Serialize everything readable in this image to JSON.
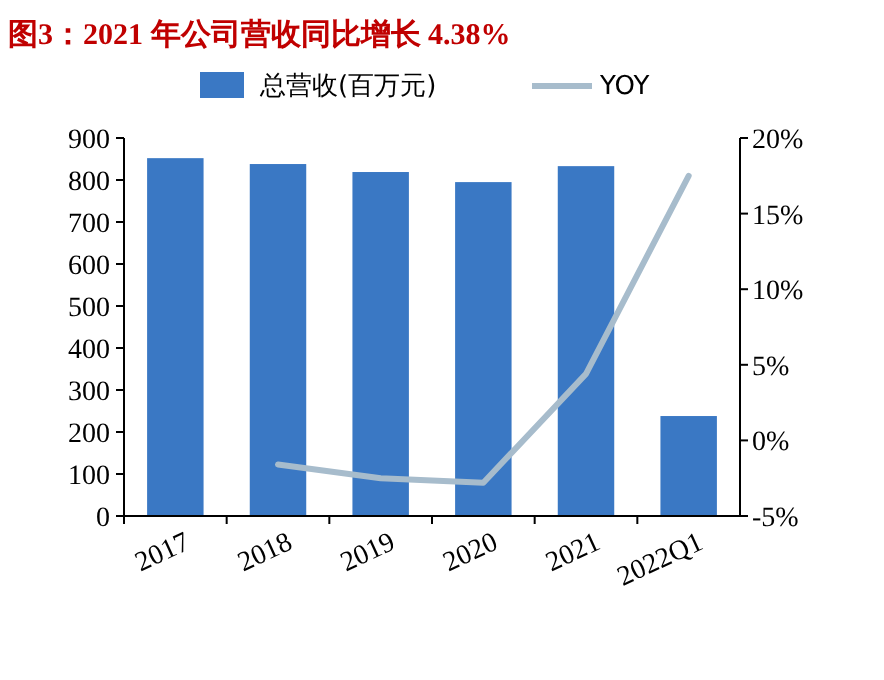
{
  "chart_data": {
    "type": "bar",
    "title": "图3：2021 年公司营收同比增长 4.38%",
    "categories": [
      "2017",
      "2018",
      "2019",
      "2020",
      "2021",
      "2022Q1"
    ],
    "series": [
      {
        "name": "总营收(百万元)",
        "color": "#3a78c4",
        "values": [
          852,
          838,
          819,
          795,
          833,
          238
        ]
      },
      {
        "name": "YOY",
        "type": "line",
        "axis": "y2",
        "color": "#a7bccc",
        "values": [
          null,
          -1.6,
          -2.5,
          -2.8,
          4.4,
          17.5
        ]
      }
    ],
    "ylim": [
      0,
      900
    ],
    "yticks": [
      0,
      100,
      200,
      300,
      400,
      500,
      600,
      700,
      800,
      900
    ],
    "y2lim": [
      -5,
      20
    ],
    "y2ticks": [
      {
        "value": -5,
        "label": "-5%"
      },
      {
        "value": 0,
        "label": "0%"
      },
      {
        "value": 5,
        "label": "5%"
      },
      {
        "value": 10,
        "label": "10%"
      },
      {
        "value": 15,
        "label": "15%"
      },
      {
        "value": 20,
        "label": "20%"
      }
    ],
    "legend": "top",
    "grid": false
  }
}
